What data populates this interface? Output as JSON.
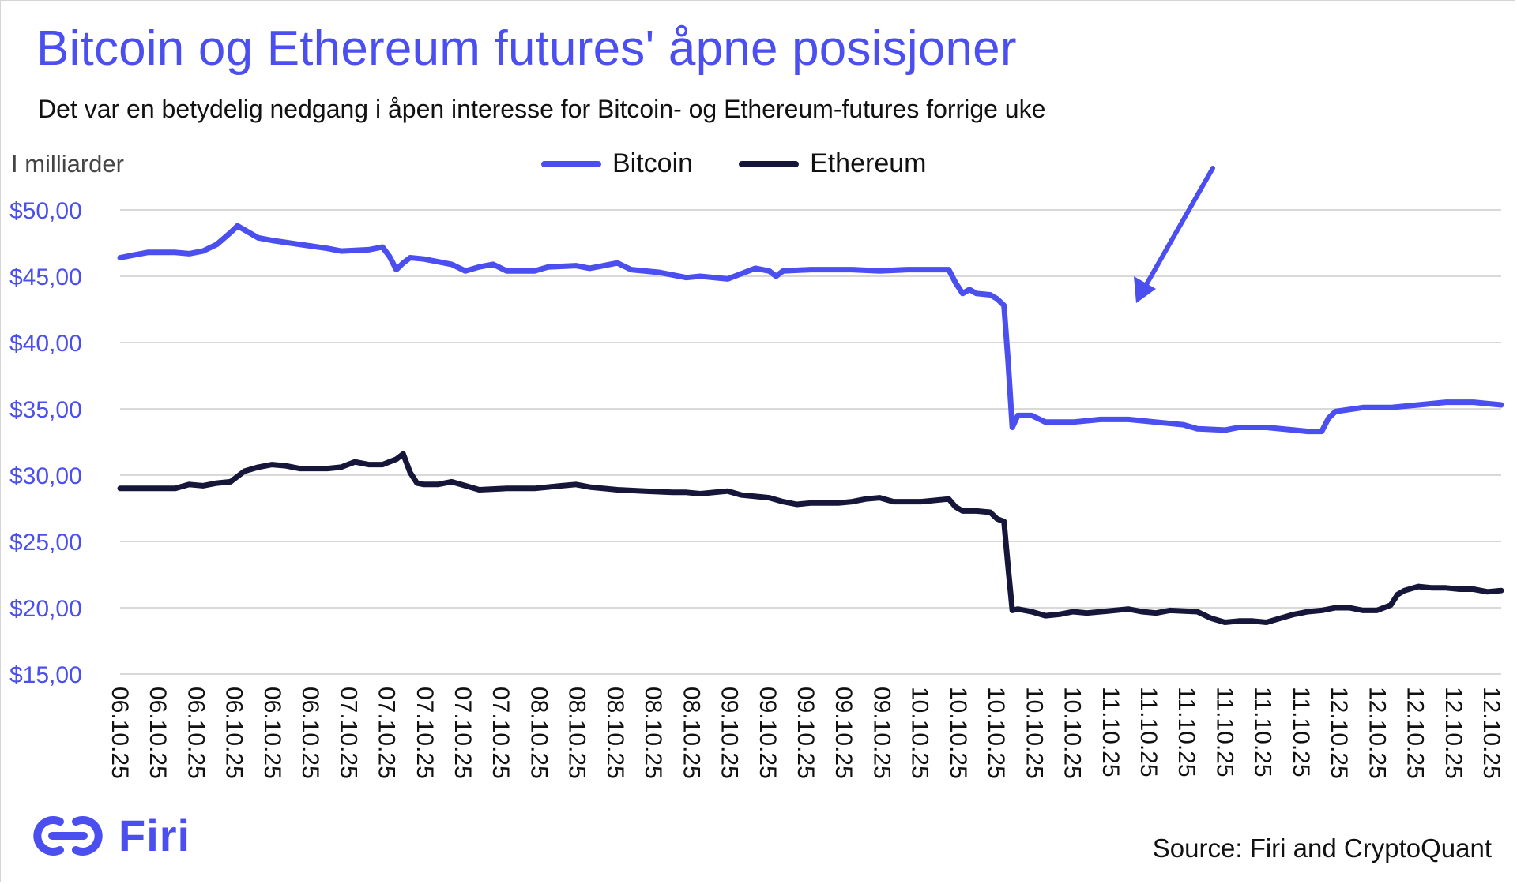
{
  "header": {
    "title": "Bitcoin og Ethereum futures' åpne posisjoner",
    "subtitle": "Det var en betydelig nedgang i åpen interesse for Bitcoin- og Ethereum-futures forrige uke",
    "unit_label": "I milliarder"
  },
  "footer": {
    "brand": "Firi",
    "source": "Source: Firi and CryptoQuant"
  },
  "colors": {
    "bitcoin": "#4b4ff0",
    "ethereum": "#15163a",
    "axis_label": "#4b4ff0",
    "grid": "#d9d9d9"
  },
  "annotation": {
    "type": "arrow",
    "points_to": "Bitcoin drop on 10.10.25"
  },
  "chart_data": {
    "type": "line",
    "title": "Bitcoin og Ethereum futures' åpne posisjoner",
    "subtitle": "Det var en betydelig nedgang i åpen interesse for Bitcoin- og Ethereum-futures forrige uke",
    "ylabel": "I milliarder",
    "ylim": [
      15,
      50
    ],
    "yticks": [
      15,
      20,
      25,
      30,
      35,
      40,
      45,
      50
    ],
    "ytick_labels": [
      "$15,00",
      "$20,00",
      "$25,00",
      "$30,00",
      "$35,00",
      "$40,00",
      "$45,00",
      "$50,00"
    ],
    "grid": true,
    "legend_position": "top-center",
    "xtick_labels": [
      "06.10.25",
      "06.10.25",
      "06.10.25",
      "06.10.25",
      "06.10.25",
      "06.10.25",
      "07.10.25",
      "07.10.25",
      "07.10.25",
      "07.10.25",
      "07.10.25",
      "08.10.25",
      "08.10.25",
      "08.10.25",
      "08.10.25",
      "08.10.25",
      "09.10.25",
      "09.10.25",
      "09.10.25",
      "09.10.25",
      "09.10.25",
      "10.10.25",
      "10.10.25",
      "10.10.25",
      "10.10.25",
      "10.10.25",
      "11.10.25",
      "11.10.25",
      "11.10.25",
      "11.10.25",
      "11.10.25",
      "11.10.25",
      "12.10.25",
      "12.10.25",
      "12.10.25",
      "12.10.25",
      "12.10.25"
    ],
    "x_range": [
      0,
      100
    ],
    "series": [
      {
        "name": "Bitcoin",
        "points": [
          [
            0,
            46.4
          ],
          [
            1,
            46.6
          ],
          [
            2,
            46.8
          ],
          [
            4,
            46.8
          ],
          [
            5,
            46.7
          ],
          [
            6,
            46.9
          ],
          [
            7,
            47.4
          ],
          [
            8,
            48.3
          ],
          [
            8.5,
            48.8
          ],
          [
            9,
            48.5
          ],
          [
            10,
            47.9
          ],
          [
            11,
            47.7
          ],
          [
            13,
            47.4
          ],
          [
            15,
            47.1
          ],
          [
            16,
            46.9
          ],
          [
            18,
            47.0
          ],
          [
            19,
            47.2
          ],
          [
            19.5,
            46.5
          ],
          [
            20,
            45.5
          ],
          [
            20.5,
            46.0
          ],
          [
            21,
            46.4
          ],
          [
            22,
            46.3
          ],
          [
            24,
            45.9
          ],
          [
            25,
            45.4
          ],
          [
            26,
            45.7
          ],
          [
            27,
            45.9
          ],
          [
            28,
            45.4
          ],
          [
            30,
            45.4
          ],
          [
            31,
            45.7
          ],
          [
            33,
            45.8
          ],
          [
            34,
            45.6
          ],
          [
            35,
            45.8
          ],
          [
            36,
            46.0
          ],
          [
            37,
            45.5
          ],
          [
            39,
            45.3
          ],
          [
            40,
            45.1
          ],
          [
            41,
            44.9
          ],
          [
            42,
            45.0
          ],
          [
            44,
            44.8
          ],
          [
            45,
            45.2
          ],
          [
            46,
            45.6
          ],
          [
            47,
            45.4
          ],
          [
            47.5,
            45.0
          ],
          [
            48,
            45.4
          ],
          [
            50,
            45.5
          ],
          [
            53,
            45.5
          ],
          [
            55,
            45.4
          ],
          [
            57,
            45.5
          ],
          [
            59,
            45.5
          ],
          [
            60,
            45.5
          ],
          [
            60.5,
            44.5
          ],
          [
            61,
            43.7
          ],
          [
            61.5,
            44.0
          ],
          [
            62,
            43.7
          ],
          [
            63,
            43.6
          ],
          [
            63.5,
            43.3
          ],
          [
            64,
            42.8
          ],
          [
            64.3,
            38.5
          ],
          [
            64.6,
            33.6
          ],
          [
            65,
            34.5
          ],
          [
            66,
            34.5
          ],
          [
            67,
            34.0
          ],
          [
            69,
            34.0
          ],
          [
            71,
            34.2
          ],
          [
            73,
            34.2
          ],
          [
            75,
            34.0
          ],
          [
            77,
            33.8
          ],
          [
            78,
            33.5
          ],
          [
            80,
            33.4
          ],
          [
            81,
            33.6
          ],
          [
            83,
            33.6
          ],
          [
            85,
            33.4
          ],
          [
            86,
            33.3
          ],
          [
            87,
            33.3
          ],
          [
            87.5,
            34.3
          ],
          [
            88,
            34.8
          ],
          [
            90,
            35.1
          ],
          [
            92,
            35.1
          ],
          [
            94,
            35.3
          ],
          [
            96,
            35.5
          ],
          [
            98,
            35.5
          ],
          [
            100,
            35.3
          ]
        ]
      },
      {
        "name": "Ethereum",
        "points": [
          [
            0,
            29.0
          ],
          [
            2,
            29.0
          ],
          [
            4,
            29.0
          ],
          [
            5,
            29.3
          ],
          [
            6,
            29.2
          ],
          [
            7,
            29.4
          ],
          [
            8,
            29.5
          ],
          [
            9,
            30.3
          ],
          [
            10,
            30.6
          ],
          [
            11,
            30.8
          ],
          [
            12,
            30.7
          ],
          [
            13,
            30.5
          ],
          [
            15,
            30.5
          ],
          [
            16,
            30.6
          ],
          [
            17,
            31.0
          ],
          [
            18,
            30.8
          ],
          [
            19,
            30.8
          ],
          [
            20,
            31.2
          ],
          [
            20.5,
            31.6
          ],
          [
            21,
            30.2
          ],
          [
            21.5,
            29.4
          ],
          [
            22,
            29.3
          ],
          [
            23,
            29.3
          ],
          [
            24,
            29.5
          ],
          [
            25,
            29.2
          ],
          [
            26,
            28.9
          ],
          [
            28,
            29.0
          ],
          [
            30,
            29.0
          ],
          [
            32,
            29.2
          ],
          [
            33,
            29.3
          ],
          [
            34,
            29.1
          ],
          [
            36,
            28.9
          ],
          [
            38,
            28.8
          ],
          [
            40,
            28.7
          ],
          [
            41,
            28.7
          ],
          [
            42,
            28.6
          ],
          [
            43,
            28.7
          ],
          [
            44,
            28.8
          ],
          [
            45,
            28.5
          ],
          [
            46,
            28.4
          ],
          [
            47,
            28.3
          ],
          [
            48,
            28.0
          ],
          [
            49,
            27.8
          ],
          [
            50,
            27.9
          ],
          [
            51,
            27.9
          ],
          [
            52,
            27.9
          ],
          [
            53,
            28.0
          ],
          [
            54,
            28.2
          ],
          [
            55,
            28.3
          ],
          [
            56,
            28.0
          ],
          [
            58,
            28.0
          ],
          [
            60,
            28.2
          ],
          [
            60.5,
            27.6
          ],
          [
            61,
            27.3
          ],
          [
            62,
            27.3
          ],
          [
            63,
            27.2
          ],
          [
            63.5,
            26.7
          ],
          [
            64,
            26.5
          ],
          [
            64.3,
            23.0
          ],
          [
            64.6,
            19.8
          ],
          [
            65,
            19.9
          ],
          [
            66,
            19.7
          ],
          [
            67,
            19.4
          ],
          [
            68,
            19.5
          ],
          [
            69,
            19.7
          ],
          [
            70,
            19.6
          ],
          [
            72,
            19.8
          ],
          [
            73,
            19.9
          ],
          [
            74,
            19.7
          ],
          [
            75,
            19.6
          ],
          [
            76,
            19.8
          ],
          [
            78,
            19.7
          ],
          [
            79,
            19.2
          ],
          [
            80,
            18.9
          ],
          [
            81,
            19.0
          ],
          [
            82,
            19.0
          ],
          [
            83,
            18.9
          ],
          [
            84,
            19.2
          ],
          [
            85,
            19.5
          ],
          [
            86,
            19.7
          ],
          [
            87,
            19.8
          ],
          [
            88,
            20.0
          ],
          [
            89,
            20.0
          ],
          [
            90,
            19.8
          ],
          [
            91,
            19.8
          ],
          [
            92,
            20.2
          ],
          [
            92.5,
            21.0
          ],
          [
            93,
            21.3
          ],
          [
            94,
            21.6
          ],
          [
            95,
            21.5
          ],
          [
            96,
            21.5
          ],
          [
            97,
            21.4
          ],
          [
            98,
            21.4
          ],
          [
            99,
            21.2
          ],
          [
            100,
            21.3
          ]
        ]
      }
    ]
  }
}
